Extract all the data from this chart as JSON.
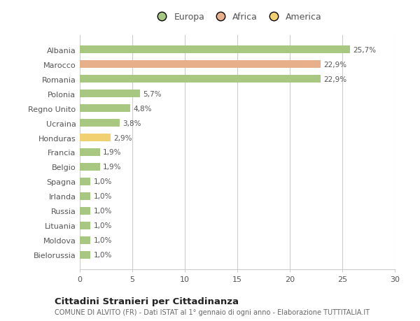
{
  "categories": [
    "Albania",
    "Marocco",
    "Romania",
    "Polonia",
    "Regno Unito",
    "Ucraina",
    "Honduras",
    "Francia",
    "Belgio",
    "Spagna",
    "Irlanda",
    "Russia",
    "Lituania",
    "Moldova",
    "Bielorussia"
  ],
  "values": [
    25.7,
    22.9,
    22.9,
    5.7,
    4.8,
    3.8,
    2.9,
    1.9,
    1.9,
    1.0,
    1.0,
    1.0,
    1.0,
    1.0,
    1.0
  ],
  "labels": [
    "25,7%",
    "22,9%",
    "22,9%",
    "5,7%",
    "4,8%",
    "3,8%",
    "2,9%",
    "1,9%",
    "1,9%",
    "1,0%",
    "1,0%",
    "1,0%",
    "1,0%",
    "1,0%",
    "1,0%"
  ],
  "colors": [
    "#a8c882",
    "#e8b08a",
    "#a8c882",
    "#a8c882",
    "#a8c882",
    "#a8c882",
    "#f0d070",
    "#a8c882",
    "#a8c882",
    "#a8c882",
    "#a8c882",
    "#a8c882",
    "#a8c882",
    "#a8c882",
    "#a8c882"
  ],
  "legend": [
    {
      "label": "Europa",
      "color": "#a8c882"
    },
    {
      "label": "Africa",
      "color": "#e8b08a"
    },
    {
      "label": "America",
      "color": "#f0d070"
    }
  ],
  "xlim": [
    0,
    30
  ],
  "xticks": [
    0,
    5,
    10,
    15,
    20,
    25,
    30
  ],
  "title": "Cittadini Stranieri per Cittadinanza",
  "subtitle": "COMUNE DI ALVITO (FR) - Dati ISTAT al 1° gennaio di ogni anno - Elaborazione TUTTITALIA.IT",
  "background_color": "#ffffff",
  "grid_color": "#cccccc"
}
